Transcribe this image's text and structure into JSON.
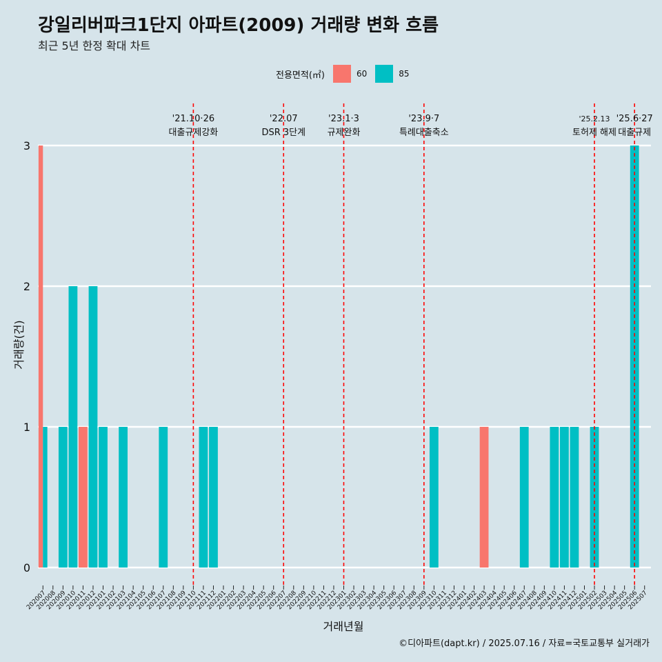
{
  "title": "강일리버파크1단지 아파트(2009) 거래량 변화 흐름",
  "subtitle": "최근 5년 한정 확대 차트",
  "footer": "©디아파트(dapt.kr) / 2025.07.16 / 자료=국토교통부 실거래가",
  "legend": {
    "title": "전용면적(㎡)",
    "items": [
      {
        "label": "60",
        "color": "#F8766D"
      },
      {
        "label": "85",
        "color": "#00BFC4"
      }
    ]
  },
  "chart_data": {
    "type": "bar",
    "xlabel": "거래년월",
    "ylabel": "거래량(건)",
    "ylim": [
      0,
      3
    ],
    "yticks": [
      0,
      1,
      2,
      3
    ],
    "grid": "horizontal",
    "legend_position": "top",
    "categories": [
      "202007",
      "202008",
      "202009",
      "202010",
      "202011",
      "202012",
      "202101",
      "202102",
      "202103",
      "202104",
      "202105",
      "202106",
      "202107",
      "202108",
      "202109",
      "202110",
      "202111",
      "202112",
      "202201",
      "202202",
      "202203",
      "202204",
      "202205",
      "202206",
      "202207",
      "202208",
      "202209",
      "202210",
      "202211",
      "202212",
      "202301",
      "202302",
      "202303",
      "202304",
      "202305",
      "202306",
      "202307",
      "202308",
      "202309",
      "202310",
      "202311",
      "202312",
      "202401",
      "202402",
      "202403",
      "202404",
      "202405",
      "202406",
      "202407",
      "202408",
      "202409",
      "202410",
      "202411",
      "202412",
      "202501",
      "202502",
      "202503",
      "202504",
      "202505",
      "202506",
      "202507"
    ],
    "series": [
      {
        "name": "60",
        "color": "#F8766D",
        "values": [
          3,
          0,
          0,
          0,
          1,
          0,
          0,
          0,
          0,
          0,
          0,
          0,
          0,
          0,
          0,
          0,
          0,
          0,
          0,
          0,
          0,
          0,
          0,
          0,
          0,
          0,
          0,
          0,
          0,
          0,
          0,
          0,
          0,
          0,
          0,
          0,
          0,
          0,
          0,
          0,
          0,
          0,
          0,
          0,
          1,
          0,
          0,
          0,
          0,
          0,
          0,
          0,
          0,
          0,
          0,
          0,
          0,
          0,
          0,
          0,
          0
        ]
      },
      {
        "name": "85",
        "color": "#00BFC4",
        "values": [
          1,
          0,
          1,
          2,
          0,
          2,
          1,
          0,
          1,
          0,
          0,
          0,
          1,
          0,
          0,
          0,
          1,
          1,
          0,
          0,
          0,
          0,
          0,
          0,
          0,
          0,
          0,
          0,
          0,
          0,
          0,
          0,
          0,
          0,
          0,
          0,
          0,
          0,
          0,
          1,
          0,
          0,
          0,
          0,
          0,
          0,
          0,
          0,
          1,
          0,
          0,
          1,
          1,
          1,
          0,
          1,
          0,
          0,
          0,
          3,
          0
        ]
      }
    ],
    "annotations": [
      {
        "category": "202110",
        "date": "'21.10·26",
        "label": "대출규제강화"
      },
      {
        "category": "202207",
        "date": "'22.07",
        "label": "DSR 3단계"
      },
      {
        "category": "202301",
        "date": "'23.1·3",
        "label": "규제완화"
      },
      {
        "category": "202309",
        "date": "'23.9·7",
        "label": "특례대출축소"
      },
      {
        "category": "202502",
        "date": "'25.2.13",
        "label": "토허제 해제"
      },
      {
        "category": "202506",
        "date": "'25.6·27",
        "label": "대출규제"
      }
    ],
    "annotation_line_color": "#FF0000"
  }
}
